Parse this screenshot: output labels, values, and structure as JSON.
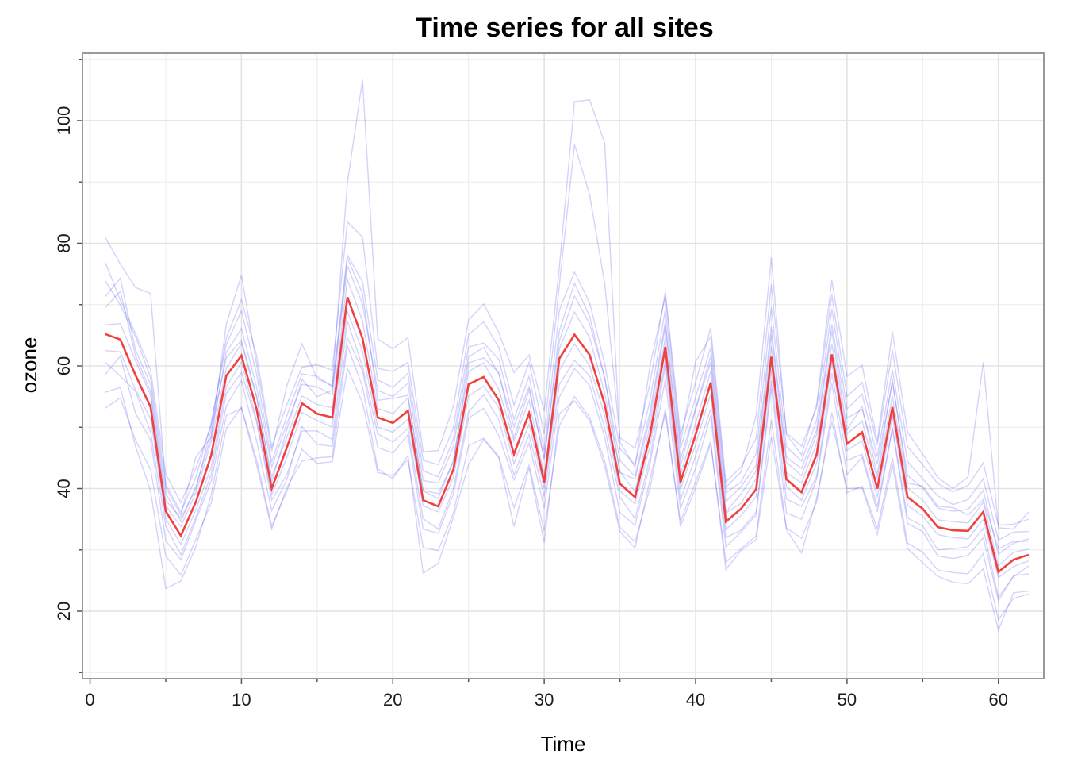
{
  "chart_data": {
    "type": "line",
    "title": "Time series for all sites",
    "xlabel": "Time",
    "ylabel": "ozone",
    "xlim": [
      -0.5,
      63
    ],
    "ylim": [
      9,
      111
    ],
    "xticks": [
      0,
      10,
      20,
      30,
      40,
      50,
      60
    ],
    "yticks": [
      20,
      40,
      60,
      80,
      100
    ],
    "x_tick_labels": [
      "0",
      "10",
      "20",
      "30",
      "40",
      "50",
      "60"
    ],
    "y_tick_labels": [
      "20",
      "40",
      "60",
      "80",
      "100"
    ],
    "grid": true,
    "legend": "none",
    "colors": {
      "sites": "#3535ee",
      "mean": "#f04040"
    },
    "x": [
      1,
      2,
      3,
      4,
      5,
      6,
      7,
      8,
      9,
      10,
      11,
      12,
      13,
      14,
      15,
      16,
      17,
      18,
      19,
      20,
      21,
      22,
      23,
      24,
      25,
      26,
      27,
      28,
      29,
      30,
      31,
      32,
      33,
      34,
      35,
      36,
      37,
      38,
      39,
      40,
      41,
      42,
      43,
      44,
      45,
      46,
      47,
      48,
      49,
      50,
      51,
      52,
      53,
      54,
      55,
      56,
      57,
      58,
      59,
      60,
      61,
      62
    ],
    "series": [
      {
        "values": [
          65.2,
          64.3,
          58.5,
          53.3,
          36.3,
          32.3,
          37.9,
          45.4,
          58.4,
          61.7,
          53.0,
          40.0,
          46.7,
          53.9,
          52.2,
          51.6,
          71.2,
          64.5,
          51.6,
          50.7,
          52.7,
          38.1,
          37.1,
          43.1,
          57.0,
          58.2,
          54.4,
          45.6,
          52.3,
          41.0,
          61.2,
          65.1,
          61.8,
          53.7,
          40.8,
          38.6,
          48.8,
          63.1,
          41.0,
          48.8,
          57.3,
          34.6,
          36.7,
          39.9,
          61.5,
          41.5,
          39.4,
          45.6,
          61.9,
          47.3,
          49.2,
          40.0,
          53.3,
          38.6,
          36.7,
          33.7,
          33.2,
          33.1,
          36.2,
          26.4,
          28.4,
          29.2
        ]
      },
      {
        "values": [
          81.0,
          76.6,
          72.8,
          71.8,
          40.2,
          35.7,
          45.2,
          48.4,
          66.8,
          74.8,
          60.3,
          46.1,
          56.8,
          63.6,
          57.9,
          56.8,
          89.9,
          106.7,
          64.4,
          62.8,
          64.6,
          46.0,
          46.2,
          53.4,
          67.5,
          70.1,
          65.4,
          58.9,
          61.8,
          52.6,
          76.1,
          103.1,
          103.4,
          96.3,
          47.6,
          43.5,
          60.2,
          71.4,
          47.5,
          60.7,
          64.8,
          40.2,
          42.7,
          51.9,
          77.7,
          48.8,
          45.5,
          53.8,
          74.0,
          58.3,
          60.1,
          47.7,
          65.6,
          49.2,
          45.6,
          41.8,
          40.0,
          41.9,
          60.6,
          33.6,
          33.4,
          36.2
        ]
      },
      {
        "values": [
          55.7,
          56.5,
          46.9,
          39.6,
          23.7,
          24.9,
          30.6,
          38.9,
          51.9,
          53.1,
          43.9,
          33.4,
          40.2,
          44.5,
          45.0,
          45.2,
          63.3,
          56.6,
          43.2,
          41.6,
          45.4,
          26.2,
          27.8,
          35.3,
          43.9,
          48.0,
          45.0,
          33.8,
          43.4,
          31.2,
          52.2,
          54.3,
          51.1,
          43.6,
          33.0,
          30.3,
          41.6,
          52.3,
          34.6,
          41.1,
          47.7,
          26.8,
          29.9,
          31.7,
          48.5,
          33.3,
          29.5,
          38.5,
          50.9,
          40.0,
          40.1,
          32.5,
          43.9,
          30.2,
          27.9,
          25.7,
          24.7,
          24.5,
          26.9,
          16.9,
          23.0,
          23.3
        ]
      },
      {
        "values": [
          69.5,
          72.2,
          61.7,
          55.8,
          38.1,
          35.2,
          40.0,
          49.7,
          61.3,
          64.2,
          55.1,
          41.1,
          49.6,
          57.8,
          55.0,
          56.0,
          77.6,
          71.8,
          54.4,
          54.7,
          55.2,
          39.7,
          39.2,
          44.3,
          60.5,
          61.3,
          58.9,
          48.3,
          56.1,
          44.9,
          64.1,
          71.4,
          66.9,
          58.0,
          42.6,
          41.5,
          51.6,
          66.5,
          43.6,
          52.9,
          60.6,
          36.2,
          39.1,
          42.9,
          65.1,
          44.3,
          42.1,
          48.9,
          65.7,
          49.6,
          53.4,
          42.3,
          57.8,
          40.9,
          40.4,
          37.1,
          36.9,
          35.7,
          38.2,
          30.2,
          31.4,
          31.4
        ]
      },
      {
        "values": [
          60.6,
          58.3,
          55.9,
          49.2,
          33.9,
          29.2,
          35.4,
          42.3,
          55.5,
          58.9,
          50.9,
          38.1,
          42.3,
          49.4,
          49.4,
          48.0,
          67.3,
          59.9,
          48.9,
          47.6,
          49.8,
          35.1,
          33.4,
          40.0,
          52.5,
          55.3,
          51.2,
          42.2,
          48.8,
          38.7,
          57.0,
          60.9,
          58.4,
          49.8,
          38.6,
          35.1,
          45.2,
          60.2,
          38.1,
          45.3,
          53.0,
          32.0,
          33.2,
          36.2,
          57.6,
          38.3,
          37.1,
          42.0,
          58.8,
          44.6,
          45.6,
          37.0,
          50.0,
          35.2,
          33.9,
          30.0,
          30.2,
          30.5,
          33.5,
          22.3,
          25.6,
          27.4
        ]
      },
      {
        "values": [
          73.9,
          69.9,
          64.8,
          58.1,
          40.7,
          36.2,
          41.9,
          50.7,
          63.5,
          69.0,
          58.7,
          44.3,
          51.9,
          58.7,
          58.3,
          56.6,
          78.1,
          73.7,
          57.7,
          56.5,
          58.8,
          42.9,
          41.9,
          48.1,
          63.1,
          63.7,
          61.1,
          51.3,
          58.3,
          46.1,
          69.1,
          75.3,
          70.3,
          60.3,
          46.5,
          43.9,
          54.5,
          69.2,
          46.5,
          54.9,
          63.0,
          39.3,
          41.1,
          45.7,
          69.6,
          46.8,
          44.5,
          51.1,
          69.3,
          53.0,
          55.4,
          45.2,
          59.4,
          44.4,
          41.6,
          38.8,
          37.4,
          38.2,
          41.6,
          31.6,
          32.9,
          33.0
        ]
      },
      {
        "values": [
          58.6,
          61.6,
          52.3,
          47.9,
          31.5,
          28.4,
          34.9,
          41.2,
          53.5,
          57.6,
          47.8,
          36.4,
          41.5,
          50.1,
          47.2,
          46.9,
          64.6,
          59.2,
          46.7,
          45.8,
          48.8,
          33.4,
          32.7,
          39.1,
          51.5,
          53.1,
          48.6,
          41.4,
          47.4,
          36.8,
          54.9,
          59.6,
          56.8,
          48.3,
          36.1,
          34.0,
          44.2,
          57.8,
          36.7,
          43.3,
          51.9,
          30.5,
          32.9,
          35.7,
          56.4,
          36.0,
          35.0,
          41.6,
          57.2,
          42.3,
          45.1,
          36.2,
          49.7,
          34.3,
          33.0,
          29.0,
          28.6,
          29.1,
          32.0,
          21.7,
          25.8,
          26.1
        ]
      },
      {
        "values": [
          66.7,
          66.9,
          60.9,
          55.2,
          37.2,
          33.8,
          39.4,
          47.6,
          59.6,
          63.7,
          54.9,
          41.9,
          48.4,
          55.1,
          53.7,
          53.2,
          74.1,
          67.3,
          53.1,
          52.2,
          54.8,
          39.6,
          38.4,
          44.6,
          59.1,
          60.5,
          56.2,
          47.7,
          54.4,
          42.0,
          62.8,
          68.8,
          64.6,
          55.5,
          42.8,
          39.5,
          50.4,
          64.6,
          42.2,
          50.6,
          59.1,
          36.0,
          37.6,
          41.6,
          63.2,
          42.6,
          40.9,
          47.4,
          63.6,
          48.9,
          51.0,
          41.6,
          55.1,
          40.1,
          38.1,
          34.9,
          34.6,
          34.4,
          37.8,
          27.4,
          29.6,
          30.1
        ]
      },
      {
        "values": [
          62.5,
          62.3,
          56.1,
          51.4,
          35.1,
          30.9,
          36.6,
          43.5,
          56.6,
          60.6,
          51.2,
          39.0,
          45.1,
          52.4,
          51.1,
          50.0,
          68.9,
          62.4,
          50.0,
          49.2,
          51.3,
          37.2,
          36.2,
          41.8,
          55.1,
          56.7,
          53.2,
          44.1,
          50.5,
          40.0,
          59.3,
          63.6,
          60.0,
          51.9,
          39.6,
          37.5,
          47.1,
          61.1,
          39.9,
          47.2,
          55.4,
          33.3,
          35.6,
          38.7,
          59.3,
          40.3,
          38.1,
          44.2,
          60.5,
          46.2,
          47.8,
          38.6,
          51.8,
          37.3,
          35.5,
          32.5,
          32.0,
          31.8,
          35.0,
          25.5,
          27.3,
          28.2
        ]
      },
      {
        "values": [
          76.9,
          70.7,
          65.3,
          59.3,
          42.4,
          37.7,
          43.4,
          50.3,
          64.6,
          70.8,
          61.7,
          46.8,
          53.7,
          59.8,
          60.2,
          59.3,
          83.5,
          81.0,
          59.6,
          59.1,
          60.6,
          44.6,
          43.9,
          49.9,
          65.1,
          67.2,
          63.0,
          53.6,
          60.6,
          48.9,
          73.2,
          96.1,
          87.9,
          73.4,
          48.3,
          46.6,
          57.3,
          72.1,
          48.8,
          57.3,
          66.2,
          41.1,
          43.5,
          48.2,
          73.3,
          49.1,
          46.9,
          53.2,
          71.6,
          55.0,
          57.3,
          47.1,
          62.6,
          46.8,
          43.9,
          40.8,
          39.5,
          40.5,
          44.2,
          34.0,
          34.2,
          35.0
        ]
      },
      {
        "values": [
          53.1,
          54.8,
          47.9,
          43.1,
          29.0,
          25.9,
          31.8,
          37.6,
          49.8,
          53.3,
          44.7,
          33.9,
          39.6,
          46.4,
          44.1,
          44.4,
          59.6,
          54.0,
          42.6,
          42.1,
          44.7,
          30.4,
          29.9,
          36.0,
          47.0,
          48.2,
          45.2,
          36.9,
          43.8,
          33.1,
          50.2,
          55.0,
          51.6,
          44.5,
          33.7,
          31.3,
          40.2,
          53.0,
          33.8,
          40.2,
          47.3,
          28.0,
          30.2,
          32.3,
          51.2,
          33.6,
          31.9,
          37.8,
          52.4,
          39.3,
          40.4,
          33.5,
          45.0,
          31.1,
          29.6,
          26.7,
          26.3,
          26.1,
          29.4,
          18.6,
          22.1,
          22.8
        ]
      },
      {
        "values": [
          71.3,
          74.3,
          62.6,
          57.0,
          39.3,
          34.6,
          40.4,
          48.4,
          62.2,
          66.1,
          56.6,
          43.5,
          50.6,
          57.0,
          56.6,
          55.3,
          76.3,
          70.1,
          56.0,
          55.0,
          57.2,
          41.3,
          40.9,
          46.8,
          61.5,
          63.0,
          58.7,
          50.1,
          56.6,
          44.8,
          65.7,
          73.5,
          68.1,
          58.0,
          44.6,
          42.0,
          52.6,
          67.2,
          44.8,
          53.1,
          61.6,
          37.9,
          40.3,
          43.8,
          66.4,
          45.1,
          43.3,
          49.6,
          66.8,
          51.5,
          52.9,
          44.1,
          57.3,
          42.1,
          40.1,
          36.8,
          36.3,
          36.6,
          39.7,
          29.3,
          31.1,
          31.8
        ]
      }
    ]
  }
}
